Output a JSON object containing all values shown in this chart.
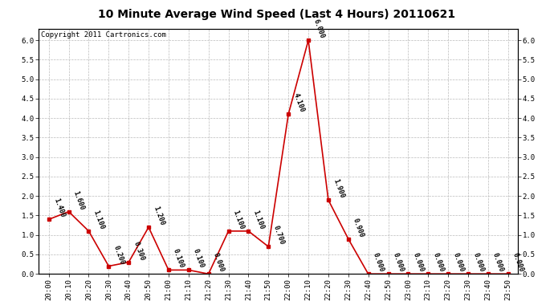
{
  "title": "10 Minute Average Wind Speed (Last 4 Hours) 20110621",
  "copyright": "Copyright 2011 Cartronics.com",
  "x_labels": [
    "20:00",
    "20:10",
    "20:20",
    "20:30",
    "20:40",
    "20:50",
    "21:00",
    "21:10",
    "21:20",
    "21:30",
    "21:40",
    "21:50",
    "22:00",
    "22:10",
    "22:20",
    "22:30",
    "22:40",
    "22:50",
    "23:00",
    "23:10",
    "23:20",
    "23:30",
    "23:40",
    "23:50"
  ],
  "y_values": [
    1.4,
    1.6,
    1.1,
    0.2,
    0.3,
    1.2,
    0.1,
    0.1,
    0.0,
    1.1,
    1.1,
    0.7,
    4.1,
    6.0,
    1.9,
    0.9,
    0.0,
    0.0,
    0.0,
    0.0,
    0.0,
    0.0,
    0.0,
    0.0
  ],
  "ylim": [
    0.0,
    6.3
  ],
  "yticks": [
    0.0,
    0.5,
    1.0,
    1.5,
    2.0,
    2.5,
    3.0,
    3.5,
    4.0,
    4.5,
    5.0,
    5.5,
    6.0
  ],
  "y_labels": [
    "0.0",
    "0.5",
    "1.0",
    "1.5",
    "2.0",
    "2.5",
    "3.0",
    "3.5",
    "4.0",
    "4.5",
    "5.0",
    "5.5",
    "6.0"
  ],
  "line_color": "#cc0000",
  "marker": "s",
  "marker_size": 2.5,
  "bg_color": "#ffffff",
  "grid_color": "#bbbbbb",
  "annotation_color": "#000000",
  "title_fontsize": 10,
  "copyright_fontsize": 6.5,
  "annotation_fontsize": 6,
  "tick_fontsize": 6.5,
  "annotation_rotation": -70
}
